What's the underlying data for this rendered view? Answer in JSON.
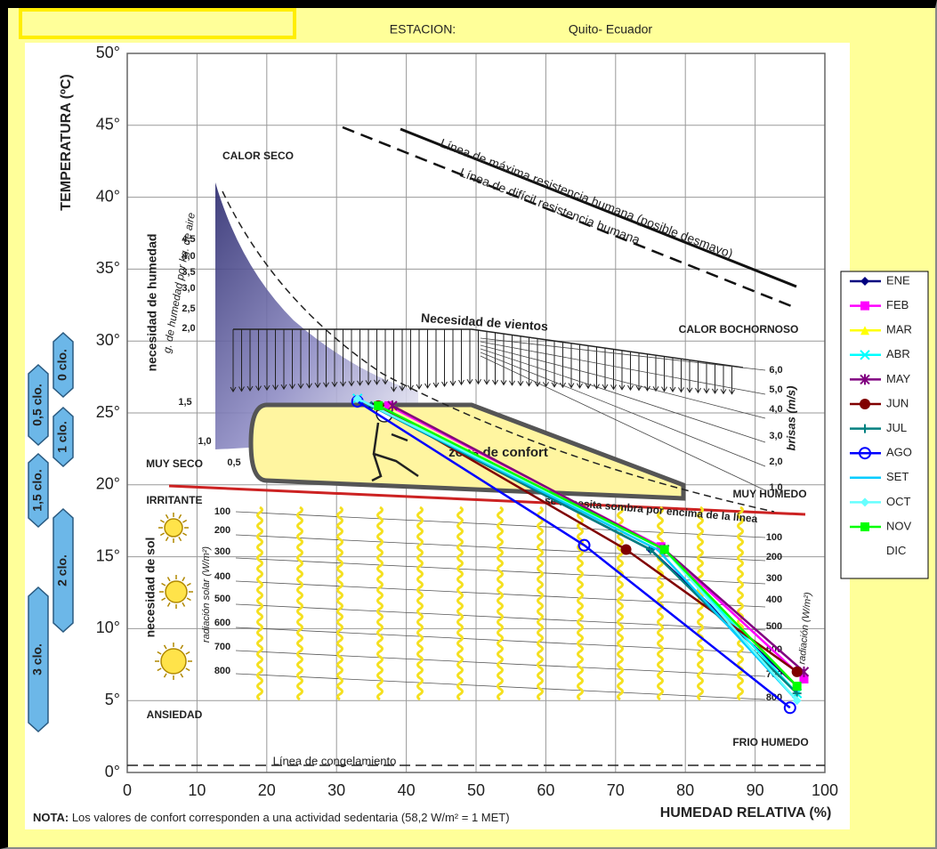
{
  "chart_data": {
    "type": "line",
    "station_label": "ESTACION:",
    "station": "Quito- Ecuador",
    "x_label": "HUMEDAD RELATIVA (%)",
    "y_label": "TEMPERATURA (ºC)",
    "note_label": "NOTA:",
    "note": "Los valores de confort corresponden a una actividad sedentaria (58,2 W/m² = 1 MET)",
    "xlim": [
      0,
      100
    ],
    "xticks": [
      0,
      10,
      20,
      30,
      40,
      50,
      60,
      70,
      80,
      90,
      100
    ],
    "ylim": [
      0,
      50
    ],
    "yticks": [
      {
        "value": 0,
        "label": "0°"
      },
      {
        "value": 5,
        "label": "5°"
      },
      {
        "value": 10,
        "label": "10°"
      },
      {
        "value": 15,
        "label": "15°"
      },
      {
        "value": 20,
        "label": "20°"
      },
      {
        "value": 25,
        "label": "25°"
      },
      {
        "value": 30,
        "label": "30°"
      },
      {
        "value": 35,
        "label": "35°"
      },
      {
        "value": 40,
        "label": "40°"
      },
      {
        "value": 45,
        "label": "45°"
      },
      {
        "value": 50,
        "label": "50°"
      }
    ],
    "grid": true,
    "legend": "right",
    "series": [
      {
        "name": "ENE",
        "color": "#000080",
        "marker": "diamond",
        "x": [
          35,
          75,
          96
        ],
        "values": [
          25.5,
          15.5,
          6
        ]
      },
      {
        "name": "FEB",
        "color": "#FF00FF",
        "marker": "square",
        "x": [
          37.5,
          76.5,
          97
        ],
        "values": [
          25.5,
          15.7,
          6.5
        ]
      },
      {
        "name": "MAR",
        "color": "#FFFF00",
        "marker": "triangle",
        "x": [
          38,
          77,
          96
        ],
        "values": [
          25.5,
          15.5,
          6
        ]
      },
      {
        "name": "ABR",
        "color": "#00FFFF",
        "marker": "x",
        "x": [
          33,
          77,
          96
        ],
        "values": [
          26,
          15.5,
          5.5
        ]
      },
      {
        "name": "MAY",
        "color": "#800080",
        "marker": "star",
        "x": [
          38,
          77,
          97
        ],
        "values": [
          25.5,
          15.5,
          7
        ]
      },
      {
        "name": "JUN",
        "color": "#800000",
        "marker": "circle",
        "x": [
          36,
          71.5,
          96
        ],
        "values": [
          25.5,
          15.5,
          7
        ]
      },
      {
        "name": "JUL",
        "color": "#008080",
        "marker": "plus",
        "x": [
          35,
          75,
          96
        ],
        "values": [
          25.5,
          15.5,
          5.5
        ]
      },
      {
        "name": "AGO",
        "color": "#0000FF",
        "marker": "open-circle",
        "x": [
          33,
          65.5,
          95
        ],
        "values": [
          25.8,
          15.8,
          4.5
        ]
      },
      {
        "name": "SET",
        "color": "#00CCFF",
        "x": [
          33,
          76,
          96
        ],
        "values": [
          26,
          15.5,
          5
        ]
      },
      {
        "name": "OCT",
        "color": "#66FFFF",
        "marker": "diamond",
        "x": [
          33,
          77,
          96
        ],
        "values": [
          26,
          15.5,
          5
        ]
      },
      {
        "name": "NOV",
        "color": "#00FF00",
        "marker": "square",
        "x": [
          36,
          77,
          96
        ],
        "values": [
          25.5,
          15.5,
          6
        ]
      },
      {
        "name": "DIC",
        "x": [
          null,
          null,
          null
        ],
        "values": [
          null,
          null,
          null
        ]
      }
    ],
    "annotations": [
      "CALOR SECO",
      "Línea de máxima resistencia humana (posible desmayo)",
      "Línea de difícil resistencia humana",
      "Necesidad de vientos",
      "CALOR BOCHORNOSO",
      "MUY SECO",
      "IRRITANTE",
      "zona de confort",
      "MUY HUMEDO",
      "se necesita sombra por encima de la línea",
      "necesidad de sol",
      "radiación solar (W/m²)",
      "ANSIEDAD",
      "FRIO HUMEDO",
      "Línea de congelamiento",
      "necesidad de humedad",
      "g. de humedad por kg. de aire",
      "brisas (m/s)",
      "radiación (W/m²)"
    ],
    "humidity_scale": [
      "4,5",
      "4,0",
      "3,5",
      "3,0",
      "2,5",
      "2,0",
      "1,5",
      "1,0",
      "0,5"
    ],
    "breeze_scale": [
      "6,0",
      "5,0",
      "4,0",
      "3,0",
      "2,0",
      "1,0"
    ],
    "radiation_left": [
      "100",
      "200",
      "300",
      "400",
      "500",
      "600",
      "700",
      "800"
    ],
    "radiation_right": [
      "100",
      "200",
      "300",
      "400",
      "500",
      "600",
      "700",
      "800"
    ],
    "clothing": [
      "0 clo.",
      "0,5 clo.",
      "1 clo.",
      "1,5 clo.",
      "2 clo.",
      "3 clo."
    ]
  }
}
